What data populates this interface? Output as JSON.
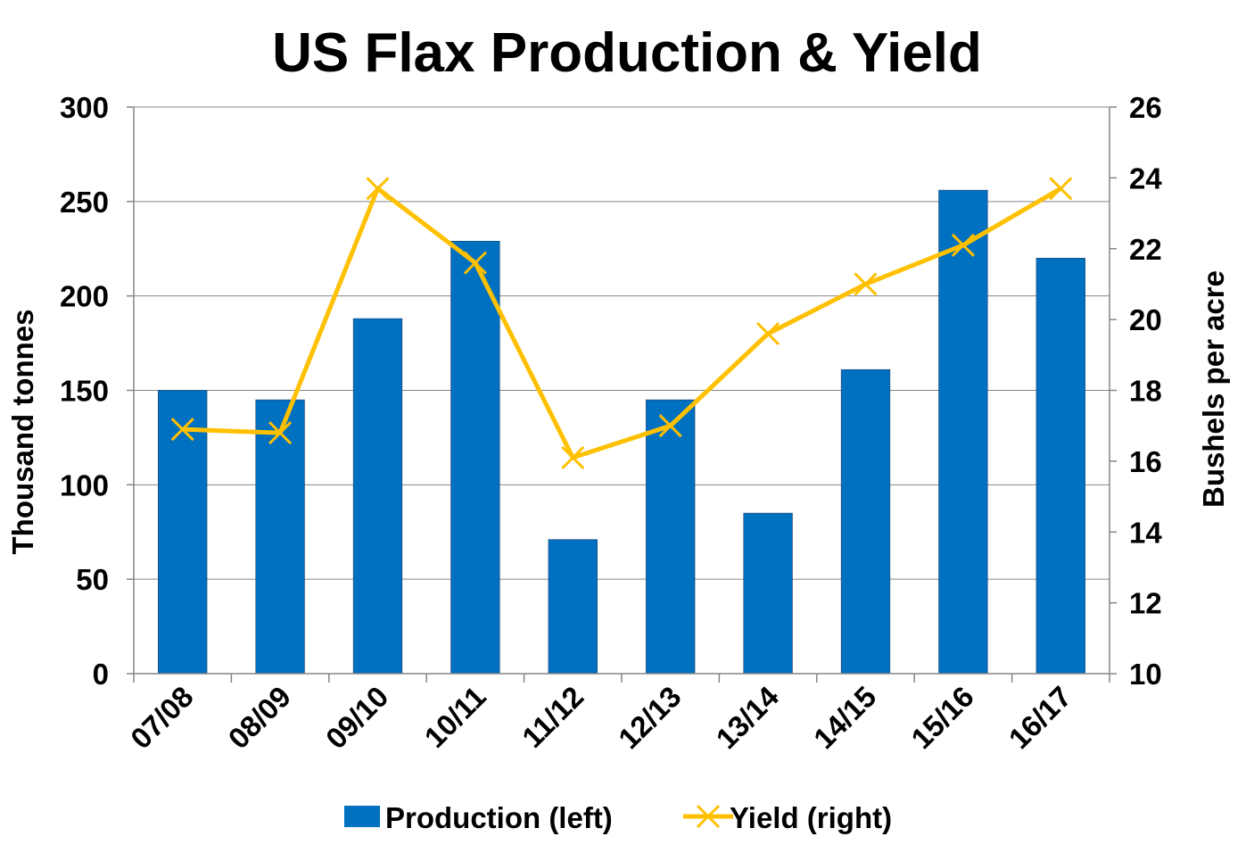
{
  "chart_data": {
    "type": "bar",
    "title": "US Flax Production & Yield",
    "categories": [
      "07/08",
      "08/09",
      "09/10",
      "10/11",
      "11/12",
      "12/13",
      "13/14",
      "14/15",
      "15/16",
      "16/17"
    ],
    "series": [
      {
        "name": "Production (left)",
        "type": "bar",
        "axis": "left",
        "color": "#0070C0",
        "values": [
          150,
          145,
          188,
          229,
          71,
          145,
          85,
          161,
          256,
          220
        ]
      },
      {
        "name": "Yield (right)",
        "type": "line",
        "axis": "right",
        "color": "#FFC000",
        "marker": "x",
        "values": [
          16.9,
          16.8,
          23.7,
          21.6,
          16.1,
          17.0,
          19.6,
          21.0,
          22.1,
          23.7
        ]
      }
    ],
    "ylabel": "Thousand tonnes",
    "ylim": [
      0,
      300
    ],
    "yticks": [
      "0",
      "50",
      "100",
      "150",
      "200",
      "250",
      "300"
    ],
    "y2label": "Bushels per acre",
    "y2lim": [
      10,
      26
    ],
    "y2ticks": [
      "10",
      "12",
      "14",
      "16",
      "18",
      "20",
      "22",
      "24",
      "26"
    ],
    "grid": true,
    "legend": "bottom"
  }
}
